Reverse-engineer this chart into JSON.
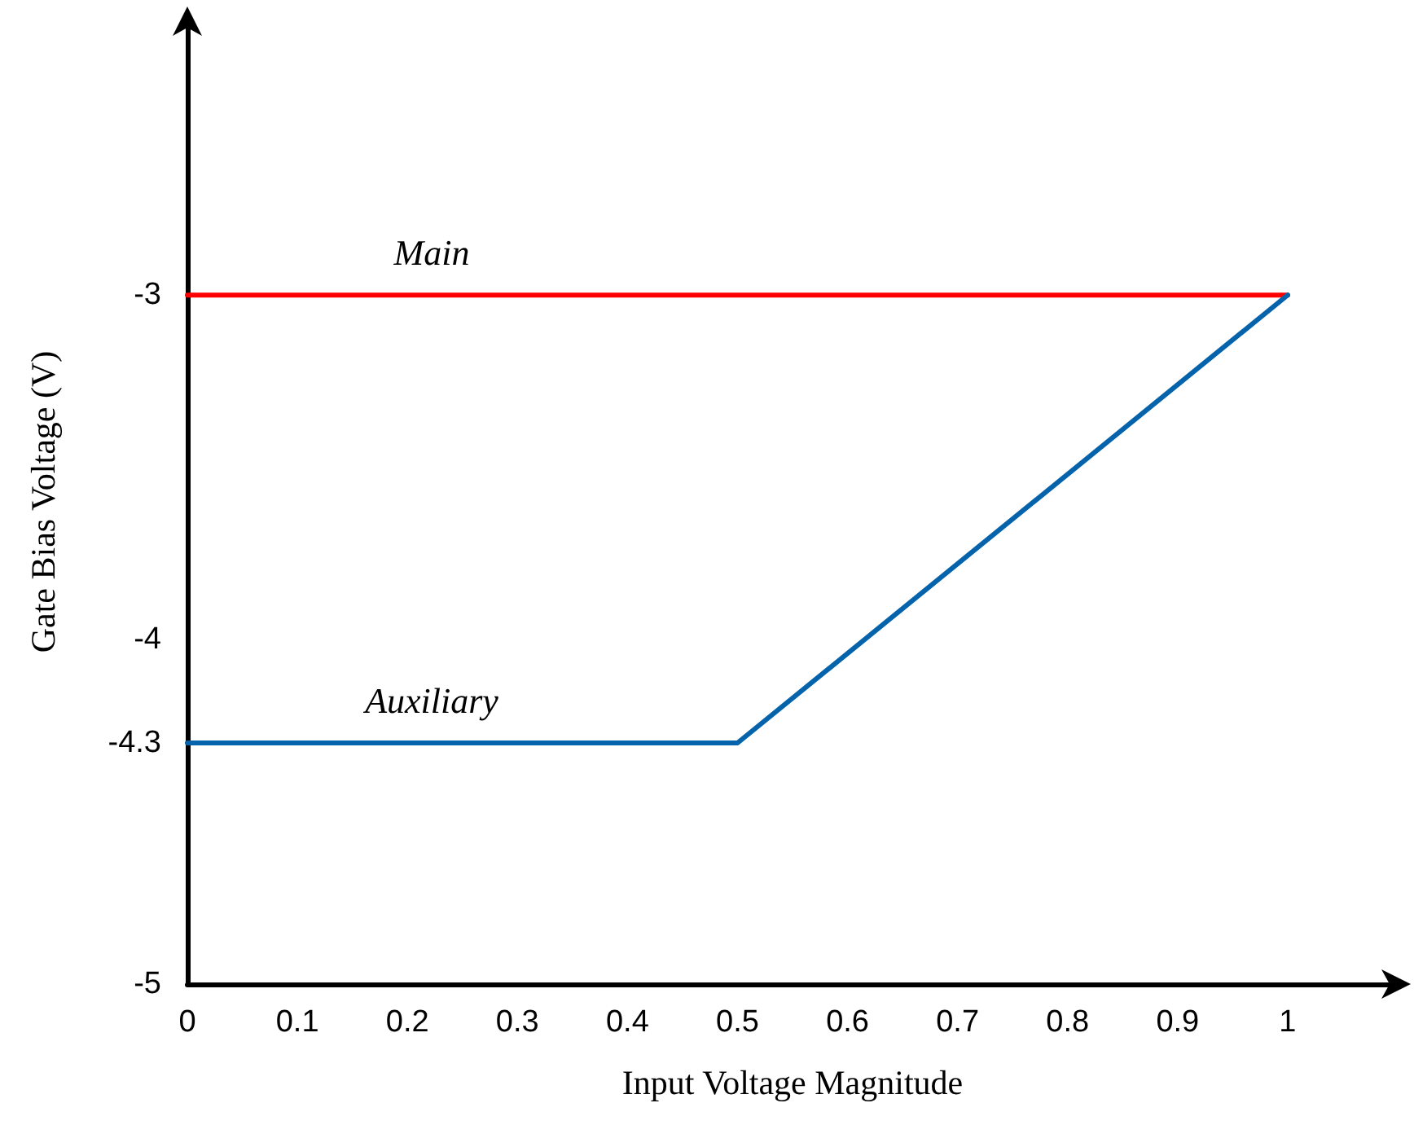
{
  "chart_data": {
    "type": "line",
    "xlabel": "Input Voltage Magnitude",
    "ylabel": "Gate Bias Voltage (V)",
    "xlim": [
      0,
      1.1
    ],
    "xticks": [
      0,
      0.1,
      0.2,
      0.3,
      0.4,
      0.5,
      0.6,
      0.7,
      0.8,
      0.9,
      1
    ],
    "ylim": [
      -5,
      -2.2
    ],
    "yticks": [
      -5,
      -4.3,
      -4,
      -3
    ],
    "grid": false,
    "legend": false,
    "marker": "none",
    "line_style": "solid",
    "series": [
      {
        "name": "Main",
        "color": "#ff0000",
        "x": [
          0,
          1
        ],
        "values": [
          -3,
          -3
        ]
      },
      {
        "name": "Auxiliary",
        "color": "#0563ab",
        "x": [
          0,
          0.5,
          1
        ],
        "values": [
          -4.3,
          -4.3,
          -3
        ]
      }
    ]
  }
}
